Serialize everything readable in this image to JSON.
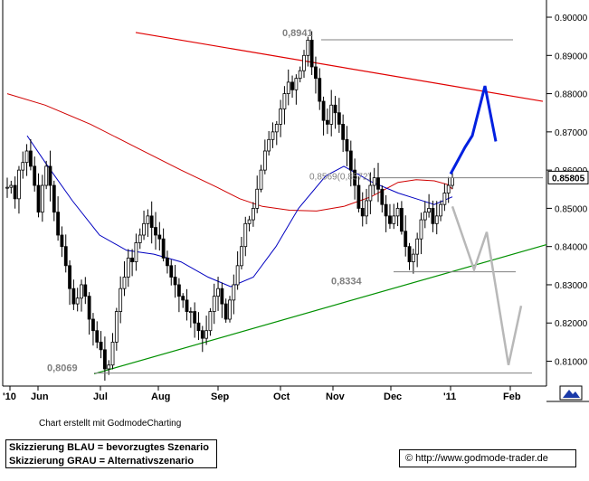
{
  "chart_data": {
    "type": "line",
    "subtype": "candlestick price chart with trendlines and scenario sketches",
    "y_axis": {
      "position": "right",
      "range": [
        0.8035,
        0.9045
      ],
      "ticks": [
        "0.90000",
        "0.89000",
        "0.88000",
        "0.87000",
        "0.86000",
        "0.85000",
        "0.84000",
        "0.83000",
        "0.82000",
        "0.81000"
      ],
      "current_value_box": "0.85805"
    },
    "x_axis": {
      "tick_labels": [
        "'10",
        "Jun",
        "Jul",
        "Aug",
        "Sep",
        "Oct",
        "Nov",
        "Dec",
        "'11",
        "Feb"
      ]
    },
    "price_closes": [
      0.8555,
      0.856,
      0.8525,
      0.86,
      0.862,
      0.865,
      0.861,
      0.856,
      0.849,
      0.856,
      0.861,
      0.856,
      0.849,
      0.843,
      0.84,
      0.835,
      0.829,
      0.825,
      0.8265,
      0.83,
      0.827,
      0.821,
      0.818,
      0.815,
      0.813,
      0.808,
      0.809,
      0.815,
      0.823,
      0.829,
      0.832,
      0.837,
      0.836,
      0.841,
      0.843,
      0.846,
      0.848,
      0.845,
      0.843,
      0.842,
      0.837,
      0.835,
      0.832,
      0.83,
      0.827,
      0.826,
      0.823,
      0.823,
      0.82,
      0.818,
      0.816,
      0.818,
      0.823,
      0.827,
      0.829,
      0.825,
      0.821,
      0.826,
      0.83,
      0.835,
      0.84,
      0.846,
      0.847,
      0.85,
      0.855,
      0.86,
      0.865,
      0.868,
      0.87,
      0.872,
      0.876,
      0.88,
      0.883,
      0.881,
      0.884,
      0.886,
      0.89,
      0.894,
      0.887,
      0.884,
      0.878,
      0.873,
      0.872,
      0.877,
      0.875,
      0.872,
      0.868,
      0.865,
      0.86,
      0.856,
      0.85,
      0.848,
      0.852,
      0.856,
      0.858,
      0.855,
      0.851,
      0.848,
      0.846,
      0.848,
      0.85,
      0.844,
      0.84,
      0.836,
      0.838,
      0.842,
      0.847,
      0.849,
      0.85,
      0.846,
      0.848,
      0.851,
      0.854,
      0.856,
      0.858
    ],
    "moving_averages": [
      {
        "color": "#d00000",
        "values": [
          0.88,
          0.877,
          0.872,
          0.866,
          0.86,
          0.8555,
          0.8525,
          0.8505,
          0.8495,
          0.8493,
          0.8505,
          0.853,
          0.8568,
          0.8575,
          0.8572,
          0.8562,
          0.855
        ]
      },
      {
        "color": "#0000c0",
        "values": [
          0.869,
          0.862,
          0.852,
          0.843,
          0.839,
          0.838,
          0.836,
          0.832,
          0.8295,
          0.832,
          0.84,
          0.85,
          0.8585,
          0.861,
          0.857,
          0.854,
          0.8525,
          0.851,
          0.853
        ]
      }
    ],
    "annotations": [
      {
        "label": "0,8941",
        "value": 0.8941
      },
      {
        "label": "0,8334",
        "value": 0.8334
      },
      {
        "label": "0,8069",
        "value": 0.8069
      },
      {
        "label": "0,8569(0,8572)"
      }
    ],
    "trendlines": [
      {
        "color": "#e00000",
        "from_value": 0.896,
        "to_value": 0.878
      },
      {
        "color": "#009000",
        "from_value": 0.8067,
        "to_value": 0.8405
      }
    ],
    "scenarios": [
      {
        "name": "Skizzierung BLAU",
        "color": "#0020e0",
        "values": [
          0.859,
          0.866,
          0.869,
          0.882,
          0.8675
        ]
      },
      {
        "name": "Skizzierung GRAU",
        "color": "#b8b8b8",
        "values": [
          0.8505,
          0.834,
          0.8438,
          0.809,
          0.8245
        ]
      }
    ],
    "grid": false
  },
  "footer": {
    "note": "Chart erstellt mit GodmodeCharting",
    "legend_line1": "Skizzierung BLAU = bevorzugtes Szenario",
    "legend_line2": "Skizzierung GRAU = Alternativszenario",
    "copyright_symbol": "©",
    "url": "http://www.godmode-trader.de"
  },
  "icons": {
    "zoom_corner": "mountain-icon"
  }
}
